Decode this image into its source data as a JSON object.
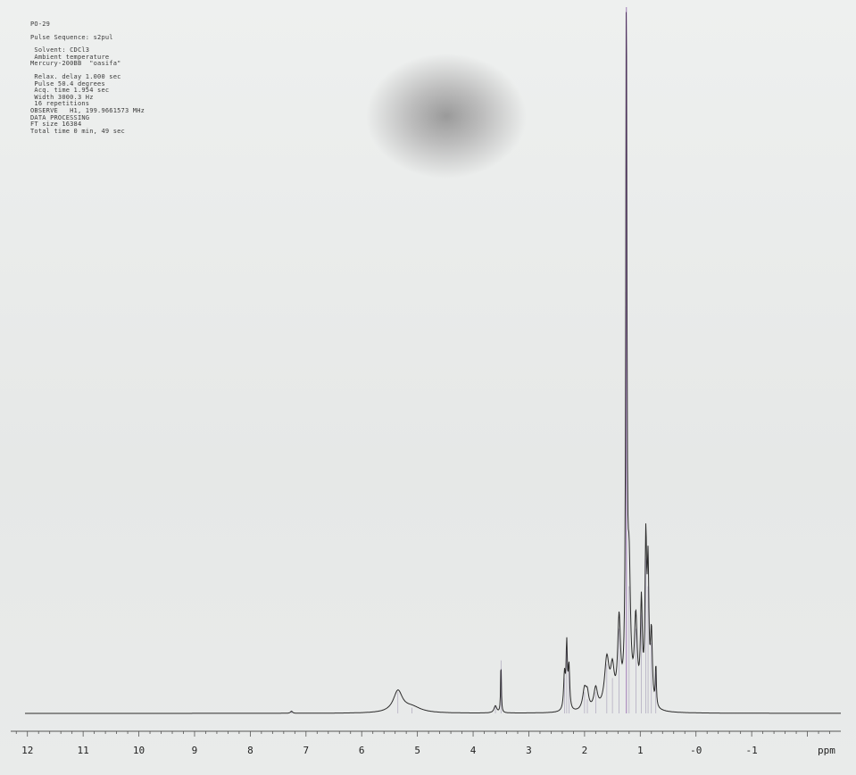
{
  "parameters": [
    "PO-29",
    "",
    "Pulse Sequence: s2pul",
    "",
    " Solvent: CDCl3",
    " Ambient temperature",
    "Mercury-200BB  \"oasifa\"",
    "",
    " Relax. delay 1.000 sec",
    " Pulse 50.4 degrees",
    " Acq. time 1.954 sec",
    " Width 3000.3 Hz",
    " 16 repetitions",
    "OBSERVE   H1, 199.9661573 MHz",
    "DATA PROCESSING",
    "FT size 16384",
    "Total time 0 min, 49 sec"
  ],
  "chart_data": {
    "type": "line",
    "xlabel": "ppm",
    "xlim": [
      12.3,
      -2.6
    ],
    "x_reversed": true,
    "tick_labels": [
      "12",
      "11",
      "10",
      "9",
      "8",
      "7",
      "6",
      "5",
      "4",
      "3",
      "2",
      "1",
      "-0",
      "-1"
    ],
    "tick_values": [
      12,
      11,
      10,
      9,
      8,
      7,
      6,
      5,
      4,
      3,
      2,
      1,
      0,
      -1
    ],
    "grid": false,
    "peaks": [
      {
        "ppm": 7.26,
        "height": 0.003,
        "width": 0.02
      },
      {
        "ppm": 5.35,
        "height": 0.03,
        "width": 0.1
      },
      {
        "ppm": 5.1,
        "height": 0.008,
        "width": 0.2
      },
      {
        "ppm": 3.5,
        "height": 0.075,
        "width": 0.008
      },
      {
        "ppm": 3.6,
        "height": 0.01,
        "width": 0.03
      },
      {
        "ppm": 2.36,
        "height": 0.05,
        "width": 0.018
      },
      {
        "ppm": 2.32,
        "height": 0.09,
        "width": 0.014
      },
      {
        "ppm": 2.28,
        "height": 0.06,
        "width": 0.016
      },
      {
        "ppm": 2.0,
        "height": 0.03,
        "width": 0.04
      },
      {
        "ppm": 1.95,
        "height": 0.02,
        "width": 0.03
      },
      {
        "ppm": 1.8,
        "height": 0.03,
        "width": 0.04
      },
      {
        "ppm": 1.6,
        "height": 0.07,
        "width": 0.05
      },
      {
        "ppm": 1.5,
        "height": 0.05,
        "width": 0.04
      },
      {
        "ppm": 1.38,
        "height": 0.12,
        "width": 0.03
      },
      {
        "ppm": 1.25,
        "height": 1.0,
        "width": 0.012
      },
      {
        "ppm": 1.2,
        "height": 0.18,
        "width": 0.03
      },
      {
        "ppm": 1.08,
        "height": 0.12,
        "width": 0.03
      },
      {
        "ppm": 0.98,
        "height": 0.14,
        "width": 0.02
      },
      {
        "ppm": 0.9,
        "height": 0.22,
        "width": 0.018
      },
      {
        "ppm": 0.86,
        "height": 0.18,
        "width": 0.018
      },
      {
        "ppm": 0.8,
        "height": 0.1,
        "width": 0.02
      },
      {
        "ppm": 0.72,
        "height": 0.06,
        "width": 0.01
      }
    ]
  }
}
